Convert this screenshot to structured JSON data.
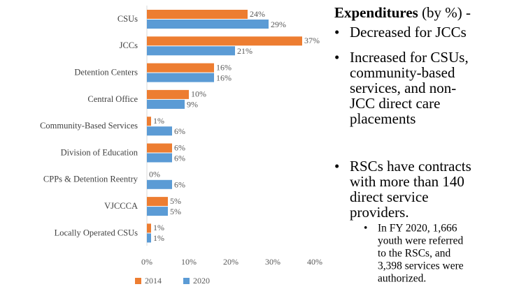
{
  "chart_data": {
    "type": "hbar",
    "categories": [
      "CSUs",
      "JCCs",
      "Detention Centers",
      "Central Office",
      "Community-Based Services",
      "Division of Education",
      "CPPs & Detention Reentry",
      "VJCCCA",
      "Locally Operated CSUs"
    ],
    "series": [
      {
        "name": "2014",
        "color": "#ed7d31",
        "values": [
          24,
          37,
          16,
          10,
          1,
          6,
          0,
          5,
          1
        ],
        "value_labels": [
          "24%",
          "37%",
          "16%",
          "10%",
          "1%",
          "6%",
          "0%",
          "5%",
          "1%"
        ]
      },
      {
        "name": "2020",
        "color": "#5b9bd5",
        "values": [
          29,
          21,
          16,
          9,
          6,
          6,
          6,
          5,
          1
        ],
        "value_labels": [
          "29%",
          "21%",
          "16%",
          "9%",
          "6%",
          "6%",
          "6%",
          "5%",
          "1%"
        ]
      }
    ],
    "xlim": [
      0,
      40
    ],
    "xticks": [
      {
        "value": 0,
        "label": "0%"
      },
      {
        "value": 10,
        "label": "10%"
      },
      {
        "value": 20,
        "label": "20%"
      },
      {
        "value": 30,
        "label": "30%"
      },
      {
        "value": 40,
        "label": "40%"
      }
    ],
    "grid": false,
    "legend": "bottom"
  },
  "notes": {
    "heading": "Expenditures",
    "heading_suffix": "(by %) -",
    "bullets": [
      {
        "lines": [
          "Decreased for JCCs"
        ]
      },
      {
        "lines": [
          "Increased for CSUs,",
          "community-based",
          "services,  and non-",
          "JCC direct care",
          "placements"
        ]
      },
      {
        "lines": [
          "RSCs have contracts",
          "with more than 140",
          "direct service",
          "providers."
        ]
      }
    ],
    "sub_bullet": {
      "lines": [
        "In FY 2020, 1,666",
        "youth were referred",
        "to the RSCs, and",
        "3,398 services  were",
        "authorized."
      ]
    }
  }
}
